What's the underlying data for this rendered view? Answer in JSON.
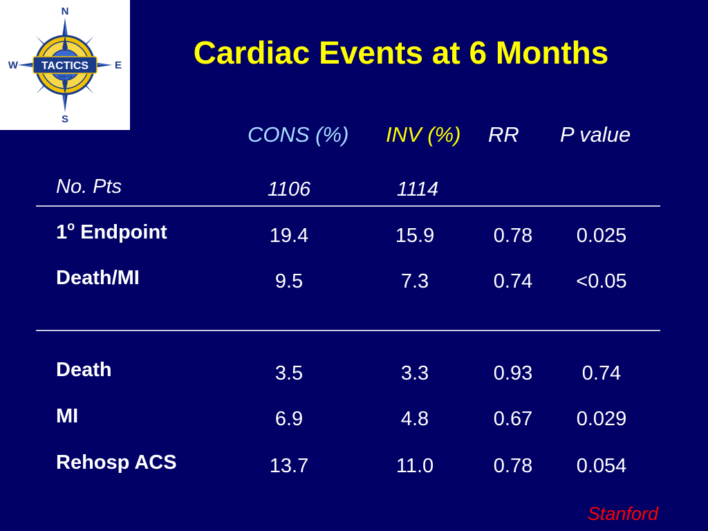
{
  "logo": {
    "text": "TACTICS",
    "subtext": "TIMI-18",
    "compass": {
      "north": "N",
      "south": "S",
      "east": "E",
      "west": "W"
    }
  },
  "title": "Cardiac Events at 6 Months",
  "headers": {
    "cons": "CONS (%)",
    "inv": "INV (%)",
    "rr": "RR",
    "p": "P value"
  },
  "header_colors": {
    "cons": "#aaddff",
    "inv": "#ffff00",
    "rr": "#ffffff",
    "p": "#ffffff"
  },
  "rows": {
    "pts": {
      "label": "No. Pts",
      "cons": "1106",
      "inv": "1114"
    },
    "endpoint": {
      "label_base": "1",
      "label_sup": "o",
      "label_rest": " Endpoint",
      "cons": "19.4",
      "inv": "15.9",
      "rr": "0.78",
      "p": "0.025"
    },
    "death_mi": {
      "label": "Death/MI",
      "cons": "9.5",
      "inv": "7.3",
      "rr": "0.74",
      "p": "<0.05"
    },
    "death": {
      "label": "Death",
      "cons": "3.5",
      "inv": "3.3",
      "rr": "0.93",
      "p": "0.74"
    },
    "mi": {
      "label": "MI",
      "cons": "6.9",
      "inv": "4.8",
      "rr": "0.67",
      "p": "0.029"
    },
    "rehosp": {
      "label": "Rehosp ACS",
      "cons": "13.7",
      "inv": "11.0",
      "rr": "0.78",
      "p": "0.054"
    }
  },
  "footer": "Stanford"
}
